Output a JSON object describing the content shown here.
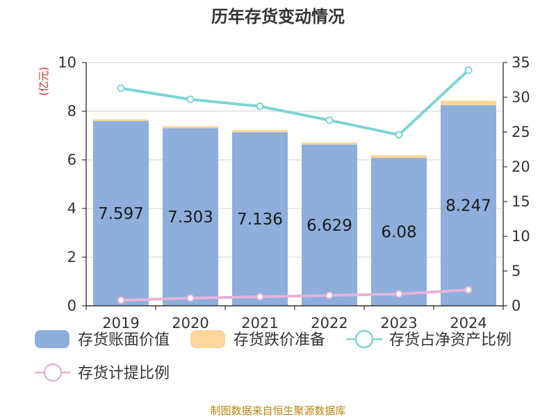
{
  "chart_data": {
    "type": "bar",
    "title": "历年存货变动情况",
    "categories": [
      "2019",
      "2020",
      "2021",
      "2022",
      "2023",
      "2024"
    ],
    "y_left_unit": "(亿元)",
    "y_left_lim": [
      0,
      10
    ],
    "y_left_ticks": [
      "0",
      "2",
      "4",
      "6",
      "8",
      "10"
    ],
    "y_right_lim": [
      0,
      35
    ],
    "y_right_ticks": [
      "0",
      "5",
      "10",
      "15",
      "20",
      "25",
      "30",
      "35"
    ],
    "grid": true,
    "legend_position": "bottom",
    "series": [
      {
        "name": "存货账面价值",
        "kind": "bar",
        "axis": "left",
        "color": "#8eaedb",
        "values": [
          7.597,
          7.303,
          7.136,
          6.629,
          6.08,
          8.247
        ],
        "labels": [
          "7.597",
          "7.303",
          "7.136",
          "6.629",
          "6.08",
          "8.247"
        ]
      },
      {
        "name": "存货跌价准备",
        "kind": "bar-stacked",
        "axis": "left",
        "color": "#fcd79b",
        "values": [
          0.07,
          0.08,
          0.09,
          0.09,
          0.11,
          0.19
        ]
      },
      {
        "name": "存货占净资产比例",
        "kind": "line",
        "axis": "right",
        "color": "#7fd3d6",
        "values": [
          31.3,
          29.7,
          28.7,
          26.7,
          24.6,
          33.9
        ]
      },
      {
        "name": "存货计提比例",
        "kind": "line",
        "axis": "right",
        "color": "#e6b3d8",
        "values": [
          0.8,
          1.1,
          1.3,
          1.5,
          1.7,
          2.3
        ]
      }
    ],
    "source": "制图数据来自恒生聚源数据库"
  }
}
